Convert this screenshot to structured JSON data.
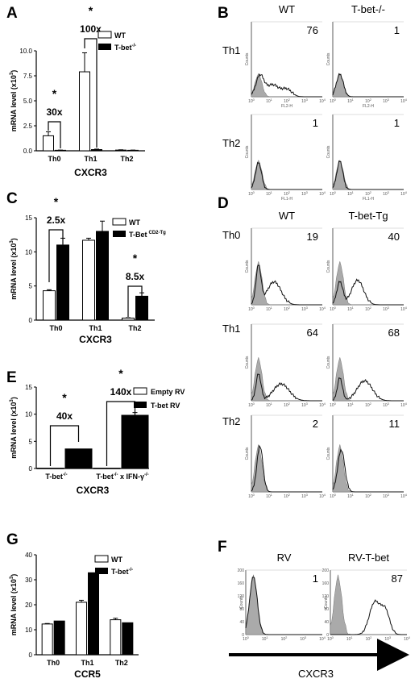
{
  "chart_data": [
    {
      "panel": "A",
      "type": "bar",
      "categories": [
        "Th0",
        "Th1",
        "Th2"
      ],
      "series": [
        {
          "name": "WT",
          "values": [
            1.5,
            7.9,
            0.07
          ],
          "errors": [
            0.4,
            1.9,
            0.03
          ]
        },
        {
          "name": "T-bet-/-",
          "values": [
            0.05,
            0.12,
            0.05
          ],
          "errors": [
            0.02,
            0.05,
            0.02
          ]
        }
      ],
      "ylabel": "mRNA level (x10 3)",
      "xlabel": "CXCR3",
      "ylim": [
        0,
        10
      ],
      "yticks": [
        "0.0",
        "2.5",
        "5.0",
        "7.5",
        "10.0"
      ],
      "legend_position": "right",
      "annotations": [
        {
          "star": "*",
          "text": "30x",
          "category": "Th0"
        },
        {
          "star": "*",
          "text": "100x",
          "category": "Th1"
        }
      ]
    },
    {
      "panel": "C",
      "type": "bar",
      "categories": [
        "Th0",
        "Th1",
        "Th2"
      ],
      "series": [
        {
          "name": "WT",
          "values": [
            4.3,
            11.7,
            0.3
          ],
          "errors": [
            0.15,
            0.3,
            0.05
          ]
        },
        {
          "name": "T-Bet CD2-Tg",
          "values": [
            11.0,
            13.0,
            3.5
          ],
          "errors": [
            1.0,
            1.5,
            0.5
          ]
        }
      ],
      "ylabel": "mRNA level (x10 3)",
      "xlabel": "CXCR3",
      "ylim": [
        0,
        15
      ],
      "yticks": [
        "0",
        "5",
        "10",
        "15"
      ],
      "legend_position": "top-right",
      "annotations": [
        {
          "star": "*",
          "text": "2.5x",
          "category": "Th0"
        },
        {
          "star": "*",
          "text": "8.5x",
          "category": "Th2"
        }
      ]
    },
    {
      "panel": "E",
      "type": "bar",
      "categories": [
        "T-bet-/-",
        "T-bet-/- x IFN-γ-/-"
      ],
      "series": [
        {
          "name": "Empty RV",
          "values": [
            0.05,
            0.05
          ],
          "errors": [
            0,
            0
          ]
        },
        {
          "name": "T-bet RV",
          "values": [
            3.6,
            9.8
          ],
          "errors": [
            0,
            0.5
          ]
        }
      ],
      "ylabel": "mRNA level (x10 3)",
      "xlabel": "CXCR3",
      "ylim": [
        0,
        15
      ],
      "yticks": [
        "0",
        "5",
        "10",
        "15"
      ],
      "legend_position": "top-right",
      "annotations": [
        {
          "star": "*",
          "text": "40x",
          "category": "T-bet-/-"
        },
        {
          "star": "*",
          "text": "140x",
          "category": "T-bet-/- x IFN-γ-/-"
        }
      ]
    },
    {
      "panel": "G",
      "type": "bar",
      "categories": [
        "Th0",
        "Th1",
        "Th2"
      ],
      "series": [
        {
          "name": "WT",
          "values": [
            12.3,
            21.0,
            14.0
          ],
          "errors": [
            0.2,
            0.8,
            0.6
          ]
        },
        {
          "name": "T-bet-/-",
          "values": [
            13.5,
            32.8,
            12.8
          ],
          "errors": [
            0,
            0,
            0
          ]
        }
      ],
      "ylabel": "mRNA level (x10 3)",
      "xlabel": "CCR5",
      "ylim": [
        0,
        40
      ],
      "yticks": [
        "0",
        "10",
        "20",
        "30",
        "40"
      ],
      "legend_position": "top-right"
    }
  ],
  "panels": {
    "A": "A",
    "B": "B",
    "C": "C",
    "D": "D",
    "E": "E",
    "F": "F",
    "G": "G"
  },
  "legendA": {
    "wt": "WT",
    "ko": "T-bet",
    "ko_sup": "-/-"
  },
  "legendC": {
    "wt": "WT",
    "tg": "T-Bet",
    "tg_sup": "CD2-Tg"
  },
  "legendE": {
    "empty": "Empty RV",
    "tbet": "T-bet RV"
  },
  "legendG": {
    "wt": "WT",
    "ko": "T-bet",
    "ko_sup": "-/-"
  },
  "catE": {
    "c1": "T-bet",
    "c1_sup": "-/-",
    "c2": "T-bet",
    "c2_sup": "-/-",
    "c2_mid": " x IFN-γ",
    "c2_sup2": "-/-"
  },
  "ylabel": {
    "main": "mRNA level (x10",
    "sup": "3",
    "close": ")"
  },
  "flowB": {
    "cols": [
      "WT",
      "T-bet-/-"
    ],
    "rows": [
      "Th1",
      "Th2"
    ],
    "values": [
      [
        "76",
        "1"
      ],
      [
        "1",
        "1"
      ]
    ],
    "xaxis_labels": [
      [
        "FL2-H",
        "FL2-H"
      ],
      [
        "FL1-H",
        "FL1-H"
      ]
    ],
    "yaxis_label": "Counts"
  },
  "flowD": {
    "cols": [
      "WT",
      "T-bet-Tg"
    ],
    "rows": [
      "Th0",
      "Th1",
      "Th2"
    ],
    "values": [
      [
        "19",
        "40"
      ],
      [
        "64",
        "68"
      ],
      [
        "2",
        "11"
      ]
    ],
    "yaxis_label": "Counts"
  },
  "flowF": {
    "cols": [
      "RV",
      "RV-T-bet"
    ],
    "values": [
      "1",
      "87"
    ],
    "yticks": [
      "0",
      "40",
      "80",
      "120",
      "160",
      "200"
    ],
    "yaxis_label": "Counts",
    "xaxis_label": "CXCR3"
  },
  "flow_ticks": {
    "x": [
      "10",
      "10",
      "10",
      "10",
      "10"
    ],
    "x_exp": [
      "0",
      "1",
      "2",
      "3",
      "4"
    ]
  }
}
